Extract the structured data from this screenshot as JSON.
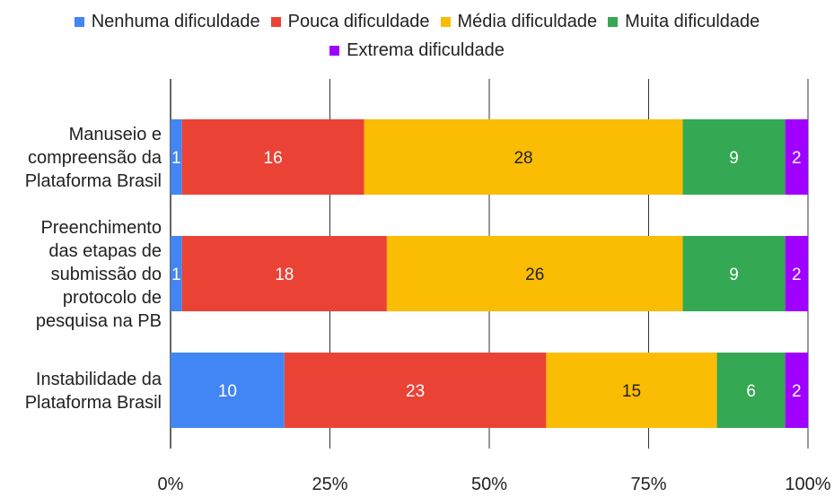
{
  "chart_data": {
    "type": "bar",
    "orientation": "horizontal",
    "stacked": "percent",
    "categories": [
      [
        "Manuseio e",
        "compreensão da",
        "Plataforma Brasil"
      ],
      [
        "Preenchimento",
        "das etapas de",
        "submissão do",
        "protocolo de",
        "pesquisa na PB"
      ],
      [
        "Instabilidade da",
        "Plataforma Brasil"
      ]
    ],
    "series": [
      {
        "name": "Nenhuma dificuldade",
        "color": "#4285F4",
        "label_color": "#ffffff",
        "values": [
          1,
          1,
          10
        ]
      },
      {
        "name": "Pouca dificuldade",
        "color": "#EA4335",
        "label_color": "#ffffff",
        "values": [
          16,
          18,
          23
        ]
      },
      {
        "name": "Média dificuldade",
        "color": "#FBBC04",
        "label_color": "#222222",
        "values": [
          28,
          26,
          15
        ]
      },
      {
        "name": "Muita dificuldade",
        "color": "#34A853",
        "label_color": "#ffffff",
        "values": [
          9,
          9,
          6
        ]
      },
      {
        "name": "Extrema dificuldade",
        "color": "#A000FF",
        "label_color": "#ffffff",
        "values": [
          2,
          2,
          2
        ]
      }
    ],
    "xlim": [
      0,
      100
    ],
    "xticks": [
      "0%",
      "25%",
      "50%",
      "75%",
      "100%"
    ],
    "grid": true,
    "legend": "top"
  }
}
